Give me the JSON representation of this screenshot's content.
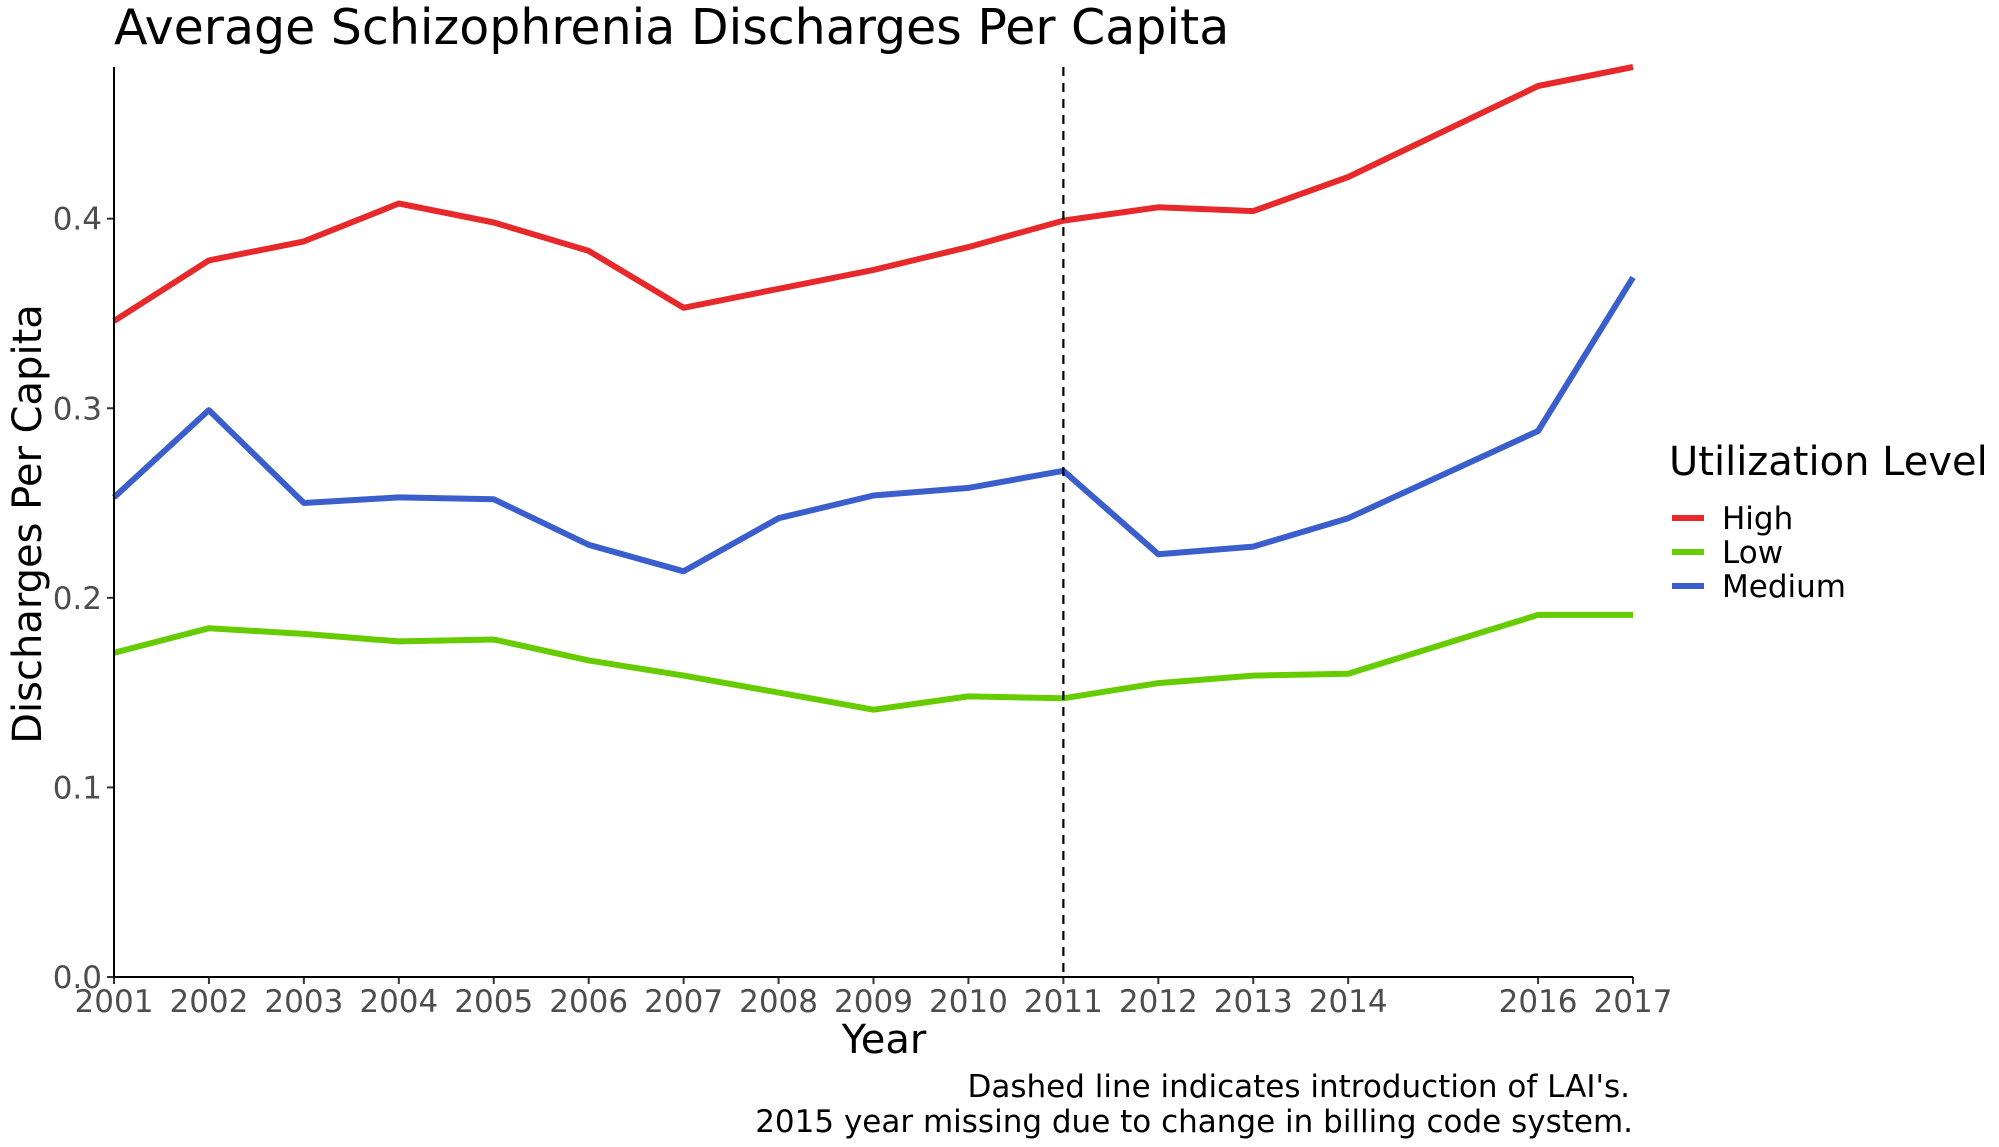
{
  "chart_data": {
    "type": "line",
    "title": "Average Schizophrenia Discharges Per Capita",
    "xlabel": "Year",
    "ylabel": "Discharges Per Capita",
    "x": [
      2001,
      2002,
      2003,
      2004,
      2005,
      2006,
      2007,
      2008,
      2009,
      2010,
      2011,
      2012,
      2013,
      2014,
      2016,
      2017
    ],
    "x_ticks": [
      "2001",
      "2002",
      "2003",
      "2004",
      "2005",
      "2006",
      "2007",
      "2008",
      "2009",
      "2010",
      "2011",
      "2012",
      "2013",
      "2014",
      "2016",
      "2017"
    ],
    "xlim": [
      2001,
      2017
    ],
    "y_ticks": [
      "0.0",
      "0.1",
      "0.2",
      "0.3",
      "0.4"
    ],
    "y_tick_values": [
      0.0,
      0.1,
      0.2,
      0.3,
      0.4
    ],
    "ylim": [
      0.0,
      0.48
    ],
    "grid": false,
    "series": [
      {
        "name": "High",
        "color": "#e8292c",
        "values": [
          0.346,
          0.378,
          0.388,
          0.408,
          0.398,
          0.383,
          0.353,
          0.363,
          0.373,
          0.385,
          0.399,
          0.406,
          0.404,
          0.422,
          0.47,
          0.48
        ]
      },
      {
        "name": "Low",
        "color": "#66cc00",
        "values": [
          0.171,
          0.184,
          0.181,
          0.177,
          0.178,
          0.167,
          0.159,
          0.15,
          0.141,
          0.148,
          0.147,
          0.155,
          0.159,
          0.16,
          0.191,
          0.191
        ]
      },
      {
        "name": "Medium",
        "color": "#3a5fcd",
        "values": [
          0.253,
          0.299,
          0.25,
          0.253,
          0.252,
          0.228,
          0.214,
          0.242,
          0.254,
          0.258,
          0.267,
          0.223,
          0.227,
          0.242,
          0.288,
          0.369
        ]
      }
    ],
    "reference_line": {
      "x": 2011,
      "style": "dashed",
      "color": "#000000"
    },
    "legend": {
      "title": "Utilization Level",
      "placement": "right"
    },
    "caption": [
      "Dashed line indicates introduction of LAI's.",
      "2015 year missing due to change in billing code system."
    ]
  }
}
